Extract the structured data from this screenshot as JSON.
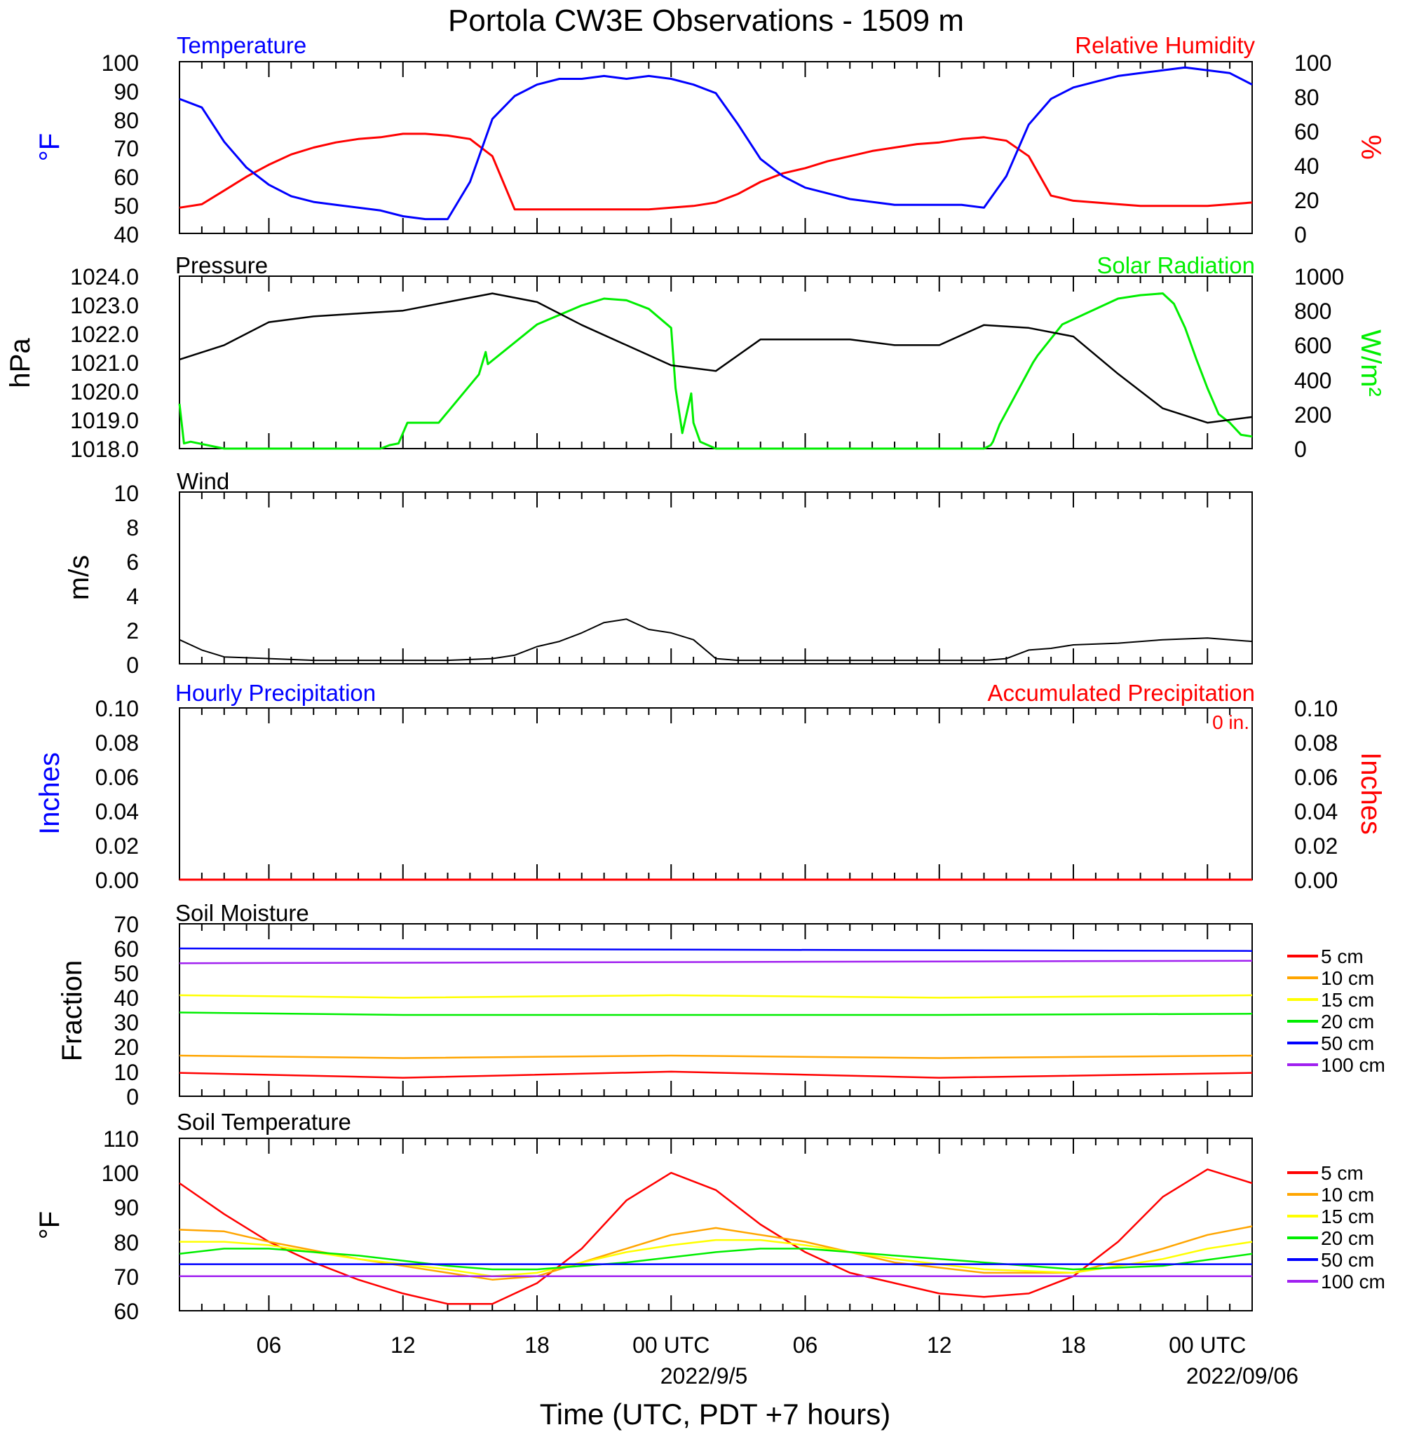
{
  "title": "Portola CW3E Observations - 1509 m",
  "xaxis": {
    "label": "Time (UTC, PDT +7 hours)",
    "hours_range": [
      -22,
      26
    ],
    "ticks": [
      {
        "h": -18,
        "label": "06"
      },
      {
        "h": -12,
        "label": "12"
      },
      {
        "h": -6,
        "label": "18"
      },
      {
        "h": 0,
        "label": "00 UTC"
      },
      {
        "h": 6,
        "label": "06"
      },
      {
        "h": 12,
        "label": "12"
      },
      {
        "h": 18,
        "label": "18"
      },
      {
        "h": 24,
        "label": "00 UTC"
      }
    ],
    "date_labels": [
      {
        "h": 0,
        "label": "2022/9/5"
      },
      {
        "h": 24,
        "label": "2022/09/06"
      }
    ]
  },
  "legend_depths": [
    "5 cm",
    "10 cm",
    "15 cm",
    "20 cm",
    "50 cm",
    "100 cm"
  ],
  "depth_colors": [
    "#ff0000",
    "#ffa500",
    "#ffff00",
    "#00ee00",
    "#0000ff",
    "#a020f0"
  ],
  "panels": {
    "temp_rh": {
      "left_title": "Temperature",
      "right_title": "Relative Humidity",
      "left_unit": "°F",
      "right_unit": "%",
      "left_ticks": [
        "100",
        "90",
        "80",
        "70",
        "60",
        "50",
        "40"
      ],
      "right_ticks": [
        "100",
        "80",
        "60",
        "40",
        "20",
        "0"
      ]
    },
    "pressure_solar": {
      "left_title": "Pressure",
      "right_title": "Solar Radiation",
      "left_unit": "hPa",
      "right_unit": "W/m²",
      "left_ticks": [
        "1024.0",
        "1023.0",
        "1022.0",
        "1021.0",
        "1020.0",
        "1019.0",
        "1018.0"
      ],
      "right_ticks": [
        "1000",
        "800",
        "600",
        "400",
        "200",
        "0"
      ]
    },
    "wind": {
      "left_title": "Wind",
      "left_unit": "m/s",
      "left_ticks": [
        "10",
        "8",
        "6",
        "4",
        "2",
        "0"
      ]
    },
    "precip": {
      "left_title": "Hourly Precipitation",
      "right_title": "Accumulated Precipitation",
      "accum_text": "0 in.",
      "left_unit": "Inches",
      "right_unit": "Inches",
      "left_ticks": [
        "0.10",
        "0.08",
        "0.06",
        "0.04",
        "0.02",
        "0.00"
      ],
      "right_ticks": [
        "0.10",
        "0.08",
        "0.06",
        "0.04",
        "0.02",
        "0.00"
      ]
    },
    "soil_moisture": {
      "left_title": "Soil Moisture",
      "left_unit": "Fraction",
      "left_ticks": [
        "70",
        "60",
        "50",
        "40",
        "30",
        "20",
        "10",
        "0"
      ]
    },
    "soil_temp": {
      "left_title": "Soil Temperature",
      "left_unit": "°F",
      "left_ticks": [
        "110",
        "100",
        "90",
        "80",
        "70",
        "60"
      ]
    }
  },
  "chart_data": [
    {
      "type": "line",
      "title": "Temperature / Relative Humidity",
      "x_unit": "hours relative to 2022/9/5 00 UTC",
      "ylim_left": [
        40,
        100
      ],
      "ylim_right": [
        0,
        100
      ],
      "series": [
        {
          "name": "Temperature",
          "axis": "left",
          "color": "#0000ff",
          "x": [
            -22,
            -21,
            -20,
            -19,
            -18,
            -17,
            -16,
            -15,
            -14,
            -13,
            -12,
            -11,
            -10,
            -9,
            -8,
            -7,
            -6,
            -5,
            -4,
            -3,
            -2,
            -1,
            0,
            1,
            2,
            3,
            4,
            5,
            6,
            7,
            8,
            9,
            10,
            11,
            12,
            13,
            14,
            15,
            16,
            17,
            18,
            19,
            20,
            21,
            22,
            23,
            24,
            25,
            26
          ],
          "y": [
            87,
            84,
            72,
            63,
            57,
            53,
            51,
            50,
            49,
            48,
            46,
            45,
            45,
            58,
            80,
            88,
            92,
            94,
            94,
            95,
            94,
            95,
            94,
            92,
            89,
            78,
            66,
            60,
            56,
            54,
            52,
            51,
            50,
            50,
            50,
            50,
            49,
            60,
            78,
            87,
            91,
            93,
            95,
            96,
            97,
            98,
            97,
            96,
            92
          ]
        },
        {
          "name": "Relative Humidity",
          "axis": "right",
          "color": "#ff0000",
          "x": [
            -22,
            -21,
            -20,
            -19,
            -18,
            -17,
            -16,
            -15,
            -14,
            -13,
            -12,
            -11,
            -10,
            -9,
            -8,
            -7,
            -6,
            -5,
            -4,
            -3,
            -2,
            -1,
            0,
            1,
            2,
            3,
            4,
            5,
            6,
            7,
            8,
            9,
            10,
            11,
            12,
            13,
            14,
            15,
            16,
            17,
            18,
            19,
            20,
            21,
            22,
            23,
            24,
            25,
            26
          ],
          "y": [
            15,
            17,
            25,
            33,
            40,
            46,
            50,
            53,
            55,
            56,
            58,
            58,
            57,
            55,
            45,
            14,
            14,
            14,
            14,
            14,
            14,
            14,
            15,
            16,
            18,
            23,
            30,
            35,
            38,
            42,
            45,
            48,
            50,
            52,
            53,
            55,
            56,
            54,
            45,
            22,
            19,
            18,
            17,
            16,
            16,
            16,
            16,
            17,
            18
          ]
        }
      ]
    },
    {
      "type": "line",
      "title": "Pressure / Solar Radiation",
      "ylim_left": [
        1018,
        1024
      ],
      "ylim_right": [
        0,
        1000
      ],
      "series": [
        {
          "name": "Pressure",
          "axis": "left",
          "color": "#000000",
          "x": [
            -22,
            -20,
            -18,
            -16,
            -14,
            -12,
            -10,
            -8,
            -6,
            -4,
            -2,
            0,
            2,
            4,
            6,
            8,
            10,
            12,
            14,
            16,
            18,
            20,
            22,
            24,
            26
          ],
          "y": [
            1021.1,
            1021.6,
            1022.4,
            1022.6,
            1022.7,
            1022.8,
            1023.1,
            1023.4,
            1023.1,
            1022.3,
            1021.6,
            1020.9,
            1020.7,
            1021.8,
            1021.8,
            1021.8,
            1021.6,
            1021.6,
            1022.3,
            1022.2,
            1021.9,
            1020.6,
            1019.4,
            1018.9,
            1019.1
          ]
        },
        {
          "name": "Solar Radiation",
          "axis": "right",
          "color": "#00ee00",
          "x": [
            -22,
            -21.8,
            -21.5,
            -20,
            -14,
            -13,
            -12.6,
            -12.2,
            -11.8,
            -10.4,
            -8.6,
            -8.3,
            -8.2,
            -6,
            -4,
            -3,
            -2,
            -1,
            0,
            0.2,
            0.5,
            0.9,
            1,
            1.3,
            2,
            8,
            12,
            14,
            14.3,
            14.4,
            14.7,
            16.2,
            16.4,
            17.5,
            18.5,
            20,
            21,
            22,
            22.5,
            23,
            23.5,
            24,
            24.5,
            25,
            25.5,
            26
          ],
          "y": [
            260,
            30,
            40,
            0,
            0,
            0,
            20,
            30,
            150,
            150,
            430,
            560,
            490,
            720,
            830,
            870,
            860,
            810,
            700,
            350,
            90,
            320,
            150,
            40,
            0,
            0,
            0,
            0,
            20,
            40,
            140,
            500,
            540,
            720,
            780,
            870,
            890,
            900,
            840,
            700,
            520,
            350,
            200,
            150,
            80,
            70
          ]
        }
      ]
    },
    {
      "type": "line",
      "title": "Wind",
      "ylim": [
        0,
        10
      ],
      "series": [
        {
          "name": "Wind",
          "color": "#000000",
          "x": [
            -22,
            -21,
            -20,
            -18,
            -16,
            -14,
            -12,
            -10,
            -8,
            -7,
            -6,
            -5,
            -4,
            -3,
            -2,
            -1,
            0,
            1,
            2,
            3,
            4,
            6,
            8,
            10,
            12,
            14,
            15,
            16,
            17,
            18,
            20,
            22,
            24,
            26
          ],
          "y": [
            1.4,
            0.8,
            0.4,
            0.3,
            0.2,
            0.2,
            0.2,
            0.2,
            0.3,
            0.5,
            1.0,
            1.3,
            1.8,
            2.4,
            2.6,
            2.0,
            1.8,
            1.4,
            0.3,
            0.2,
            0.2,
            0.2,
            0.2,
            0.2,
            0.2,
            0.2,
            0.3,
            0.8,
            0.9,
            1.1,
            1.2,
            1.4,
            1.5,
            1.3
          ]
        }
      ]
    },
    {
      "type": "line",
      "title": "Hourly / Accumulated Precipitation",
      "ylim": [
        0,
        0.1
      ],
      "series": [
        {
          "name": "Hourly Precipitation",
          "color": "#0000ff",
          "x": [
            -22,
            26
          ],
          "y": [
            0,
            0
          ]
        },
        {
          "name": "Accumulated Precipitation",
          "color": "#ff0000",
          "x": [
            -22,
            26
          ],
          "y": [
            0,
            0
          ]
        }
      ]
    },
    {
      "type": "line",
      "title": "Soil Moisture",
      "ylim": [
        0,
        70
      ],
      "series": [
        {
          "name": "5 cm",
          "color": "#ff0000",
          "x": [
            -22,
            -12,
            0,
            12,
            26
          ],
          "y": [
            9.5,
            7.5,
            10,
            7.5,
            9.5
          ]
        },
        {
          "name": "10 cm",
          "color": "#ffa500",
          "x": [
            -22,
            -12,
            0,
            12,
            26
          ],
          "y": [
            16.5,
            15.5,
            16.5,
            15.5,
            16.5
          ]
        },
        {
          "name": "15 cm",
          "color": "#ffff00",
          "x": [
            -22,
            -12,
            0,
            12,
            26
          ],
          "y": [
            41,
            40,
            41,
            40,
            41
          ]
        },
        {
          "name": "20 cm",
          "color": "#00ee00",
          "x": [
            -22,
            -12,
            0,
            12,
            26
          ],
          "y": [
            34,
            33,
            33,
            33,
            33.5
          ]
        },
        {
          "name": "50 cm",
          "color": "#0000ff",
          "x": [
            -22,
            26
          ],
          "y": [
            60,
            59
          ]
        },
        {
          "name": "100 cm",
          "color": "#a020f0",
          "x": [
            -22,
            26
          ],
          "y": [
            54,
            55
          ]
        }
      ]
    },
    {
      "type": "line",
      "title": "Soil Temperature",
      "ylim": [
        60,
        110
      ],
      "series": [
        {
          "name": "5 cm",
          "color": "#ff0000",
          "x": [
            -22,
            -20,
            -18,
            -16,
            -14,
            -12,
            -10,
            -8,
            -6,
            -4,
            -2,
            0,
            2,
            4,
            6,
            8,
            10,
            12,
            14,
            16,
            18,
            20,
            22,
            24,
            26
          ],
          "y": [
            97,
            88,
            80,
            74,
            69,
            65,
            62,
            62,
            68,
            78,
            92,
            100,
            95,
            85,
            77,
            71,
            68,
            65,
            64,
            65,
            70,
            80,
            93,
            101,
            97
          ]
        },
        {
          "name": "10 cm",
          "color": "#ffa500",
          "x": [
            -22,
            -20,
            -18,
            -14,
            -10,
            -8,
            -6,
            -2,
            0,
            2,
            4,
            6,
            10,
            14,
            18,
            22,
            24,
            26
          ],
          "y": [
            83.5,
            83,
            80,
            75,
            71,
            69,
            70,
            78,
            82,
            84,
            82,
            80,
            74,
            71,
            71,
            78,
            82,
            84.5
          ]
        },
        {
          "name": "15 cm",
          "color": "#ffff00",
          "x": [
            -22,
            -20,
            -18,
            -14,
            -10,
            -8,
            -6,
            -2,
            0,
            2,
            4,
            6,
            10,
            14,
            18,
            22,
            24,
            26
          ],
          "y": [
            80,
            80,
            79,
            75,
            72,
            70,
            71,
            77,
            79,
            80.5,
            80.5,
            79,
            75,
            72,
            71,
            75,
            78,
            80
          ]
        },
        {
          "name": "20 cm",
          "color": "#00ee00",
          "x": [
            -22,
            -20,
            -18,
            -14,
            -10,
            -8,
            -6,
            -2,
            0,
            2,
            4,
            6,
            10,
            14,
            18,
            22,
            26
          ],
          "y": [
            76.5,
            78,
            78,
            76,
            73,
            72,
            72,
            74,
            75.5,
            77,
            78,
            78,
            76,
            74,
            72,
            73,
            76.5
          ]
        },
        {
          "name": "50 cm",
          "color": "#0000ff",
          "x": [
            -22,
            26
          ],
          "y": [
            73.5,
            73.5
          ]
        },
        {
          "name": "100 cm",
          "color": "#a020f0",
          "x": [
            -22,
            26
          ],
          "y": [
            70,
            70
          ]
        }
      ]
    }
  ]
}
